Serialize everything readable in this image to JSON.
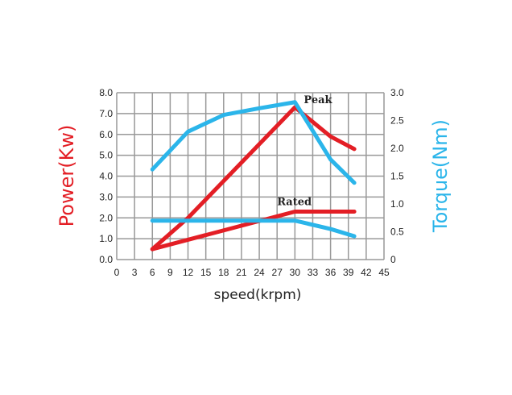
{
  "chart_data": {
    "type": "line",
    "xlabel": "speed(krpm)",
    "ylabel_left": "Power(Kw)",
    "ylabel_right": "Torque(Nm)",
    "x_ticks": [
      "0",
      "3",
      "6",
      "9",
      "12",
      "15",
      "18",
      "21",
      "24",
      "27",
      "30",
      "33",
      "36",
      "39",
      "42",
      "45"
    ],
    "y_left_ticks": [
      "0.0",
      "1.0",
      "2.0",
      "3.0",
      "4.0",
      "5.0",
      "6.0",
      "7.0",
      "8.0"
    ],
    "y_right_ticks": [
      "0",
      "0.5",
      "1.0",
      "1.5",
      "2.0",
      "2.5",
      "3.0"
    ],
    "xlim": [
      0,
      45
    ],
    "ylim_left": [
      0,
      8
    ],
    "ylim_right": [
      0,
      3
    ],
    "grid": true,
    "colors": {
      "power": "#e31e25",
      "torque": "#2bb5ea",
      "grid": "#999999"
    },
    "series": [
      {
        "axis": "left",
        "color": "#e31e25",
        "x": [
          6,
          12,
          30,
          36,
          40
        ],
        "y": [
          0.5,
          2.0,
          7.3,
          5.9,
          5.3
        ]
      },
      {
        "axis": "left",
        "color": "#e31e25",
        "x": [
          6,
          30,
          40
        ],
        "y": [
          0.5,
          2.3,
          2.3
        ]
      },
      {
        "axis": "right",
        "color": "#2bb5ea",
        "x": [
          6,
          12,
          18,
          24,
          30,
          36,
          40
        ],
        "y": [
          1.62,
          2.3,
          2.6,
          2.72,
          2.83,
          1.8,
          1.38
        ]
      },
      {
        "axis": "right",
        "color": "#2bb5ea",
        "x": [
          6,
          30,
          36,
          40
        ],
        "y": [
          0.7,
          0.7,
          0.55,
          0.42
        ]
      }
    ],
    "annotations": [
      {
        "text": "Peak",
        "x": 31.5,
        "y_left": 7.5
      },
      {
        "text": "Rated",
        "x": 27,
        "y_left": 2.6
      }
    ]
  }
}
